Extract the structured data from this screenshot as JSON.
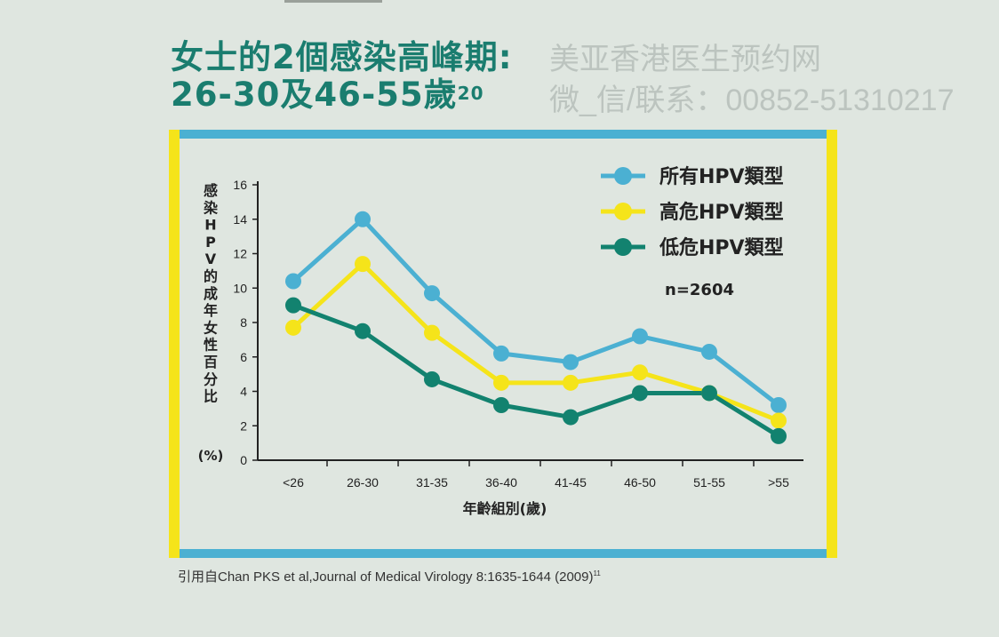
{
  "title": {
    "line1": "女士的2個感染高峰期:",
    "line2": "26-30及46-55歲",
    "line2_sup": "20"
  },
  "watermark": {
    "line1": "美亚香港医生预约网",
    "line2": "微_信/联系：00852-51310217"
  },
  "citation": {
    "text": "引用自Chan PKS et al,Journal of Medical Virology 8:1635-1644 (2009)",
    "sup": "11"
  },
  "colors": {
    "all": "#4bb0d2",
    "high": "#f5e41a",
    "low": "#12826f",
    "title": "#1a7d6f"
  },
  "chart_data": {
    "type": "line",
    "categories": [
      "<26",
      "26-30",
      "31-35",
      "36-40",
      "41-45",
      "46-50",
      "51-55",
      ">55"
    ],
    "series": [
      {
        "name": "所有HPV類型",
        "color": "#4bb0d2",
        "values": [
          10.4,
          14.0,
          9.7,
          6.2,
          5.7,
          7.2,
          6.3,
          3.2
        ]
      },
      {
        "name": "高危HPV類型",
        "color": "#f5e41a",
        "values": [
          7.7,
          11.4,
          7.4,
          4.5,
          4.5,
          5.1,
          3.9,
          2.3
        ]
      },
      {
        "name": "低危HPV類型",
        "color": "#12826f",
        "values": [
          9.0,
          7.5,
          4.7,
          3.2,
          2.5,
          3.9,
          3.9,
          1.4
        ]
      }
    ],
    "yticks": [
      0,
      2,
      4,
      6,
      8,
      10,
      12,
      14,
      16
    ],
    "ylim": [
      0,
      16
    ],
    "ylabel_chars": [
      "感",
      "染",
      "H",
      "P",
      "V",
      "的",
      "成",
      "年",
      "女",
      "性",
      "百",
      "分",
      "比"
    ],
    "ylabel_unit": "(%)",
    "xlabel": "年齡組別(歲)",
    "annotation": "n=2604",
    "legend_position": "top-right"
  }
}
